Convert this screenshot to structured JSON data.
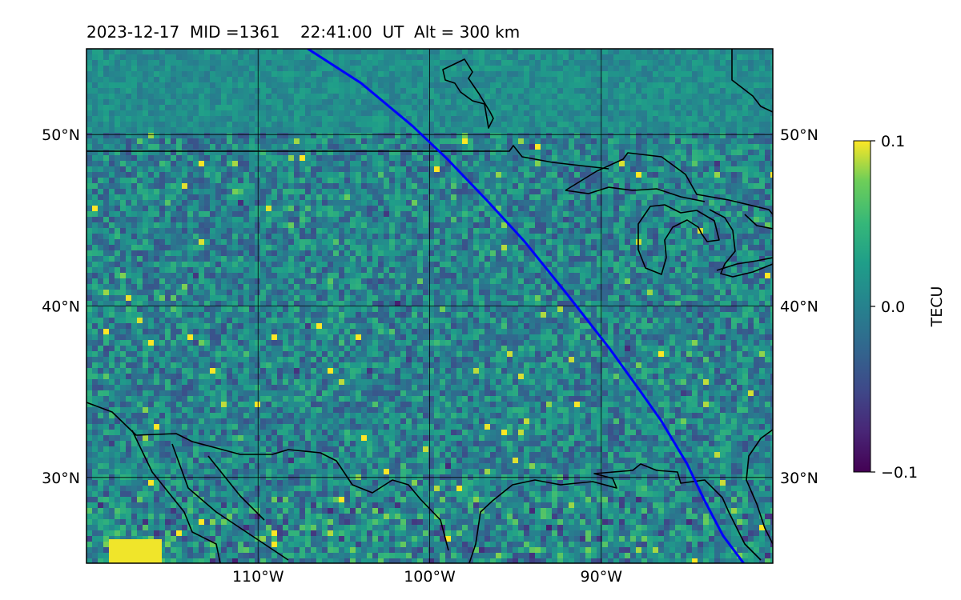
{
  "title": "2023-12-17  MID =1361    22:41:00  UT  Alt = 300 km",
  "map": {
    "lon_range": [
      -120,
      -80
    ],
    "lat_range": [
      25,
      55
    ],
    "lon_ticks": [
      {
        "lon": -110,
        "label": "110°W"
      },
      {
        "lon": -100,
        "label": "100°W"
      },
      {
        "lon": -90,
        "label": "90°W"
      }
    ],
    "lat_ticks": [
      {
        "lat": 50,
        "label": "50°N"
      },
      {
        "lat": 40,
        "label": "40°N"
      },
      {
        "lat": 30,
        "label": "30°N"
      }
    ],
    "track_color": "#0000ff",
    "coastline_color": "#000000",
    "track": [
      [
        -107.1,
        55
      ],
      [
        -104,
        53
      ],
      [
        -101,
        50.5
      ],
      [
        -99,
        48.6
      ],
      [
        -96.7,
        46.2
      ],
      [
        -94.5,
        43.8
      ],
      [
        -92,
        40.7
      ],
      [
        -89.5,
        37.5
      ],
      [
        -87.7,
        35
      ],
      [
        -86.5,
        33.3
      ],
      [
        -85,
        30.8
      ],
      [
        -84,
        28.7
      ],
      [
        -82.9,
        26.6
      ],
      [
        -81.7,
        25
      ]
    ],
    "colormap": "viridis",
    "field_description": "TEC perturbation field, mostly near 0.0 TECU with scattered positive and negative patches"
  },
  "colorbar": {
    "label": "TECU",
    "ticks": [
      {
        "value": 0.1,
        "label": "0.1"
      },
      {
        "value": 0.0,
        "label": "0.0"
      },
      {
        "value": -0.1,
        "label": "−0.1"
      }
    ],
    "range": [
      -0.1,
      0.1
    ]
  }
}
